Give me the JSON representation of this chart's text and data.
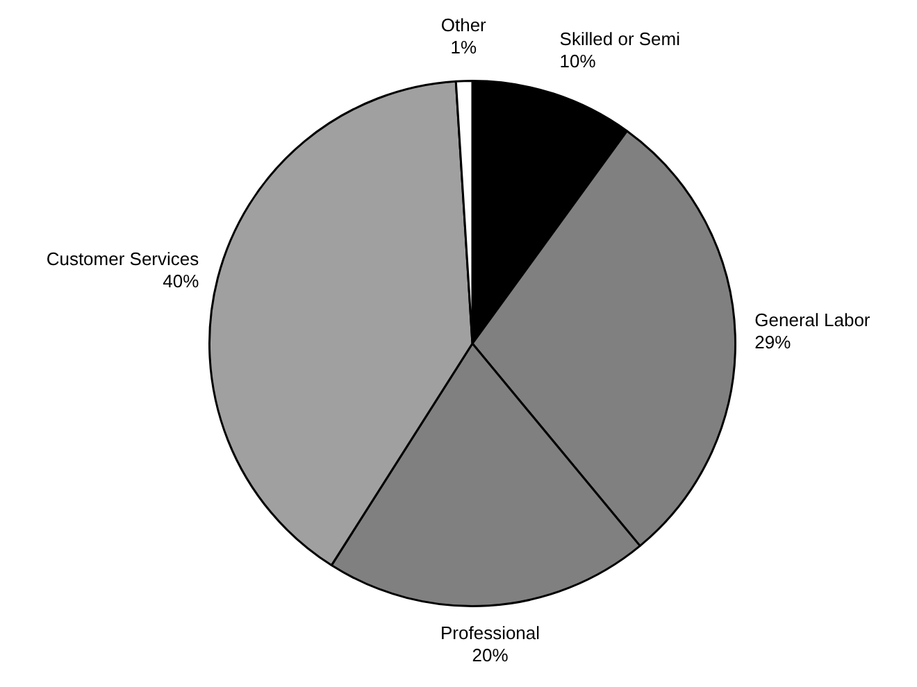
{
  "chart_data": {
    "type": "pie",
    "categories": [
      "Skilled or Semi",
      "General Labor",
      "Professional",
      "Customer Services",
      "Other"
    ],
    "values": [
      10,
      29,
      20,
      40,
      1
    ],
    "colors": [
      "#000000",
      "#808080",
      "#808080",
      "#a0a0a0",
      "#ffffff"
    ],
    "value_labels": [
      "10%",
      "29%",
      "20%",
      "40%",
      "1%"
    ],
    "legend": false
  }
}
